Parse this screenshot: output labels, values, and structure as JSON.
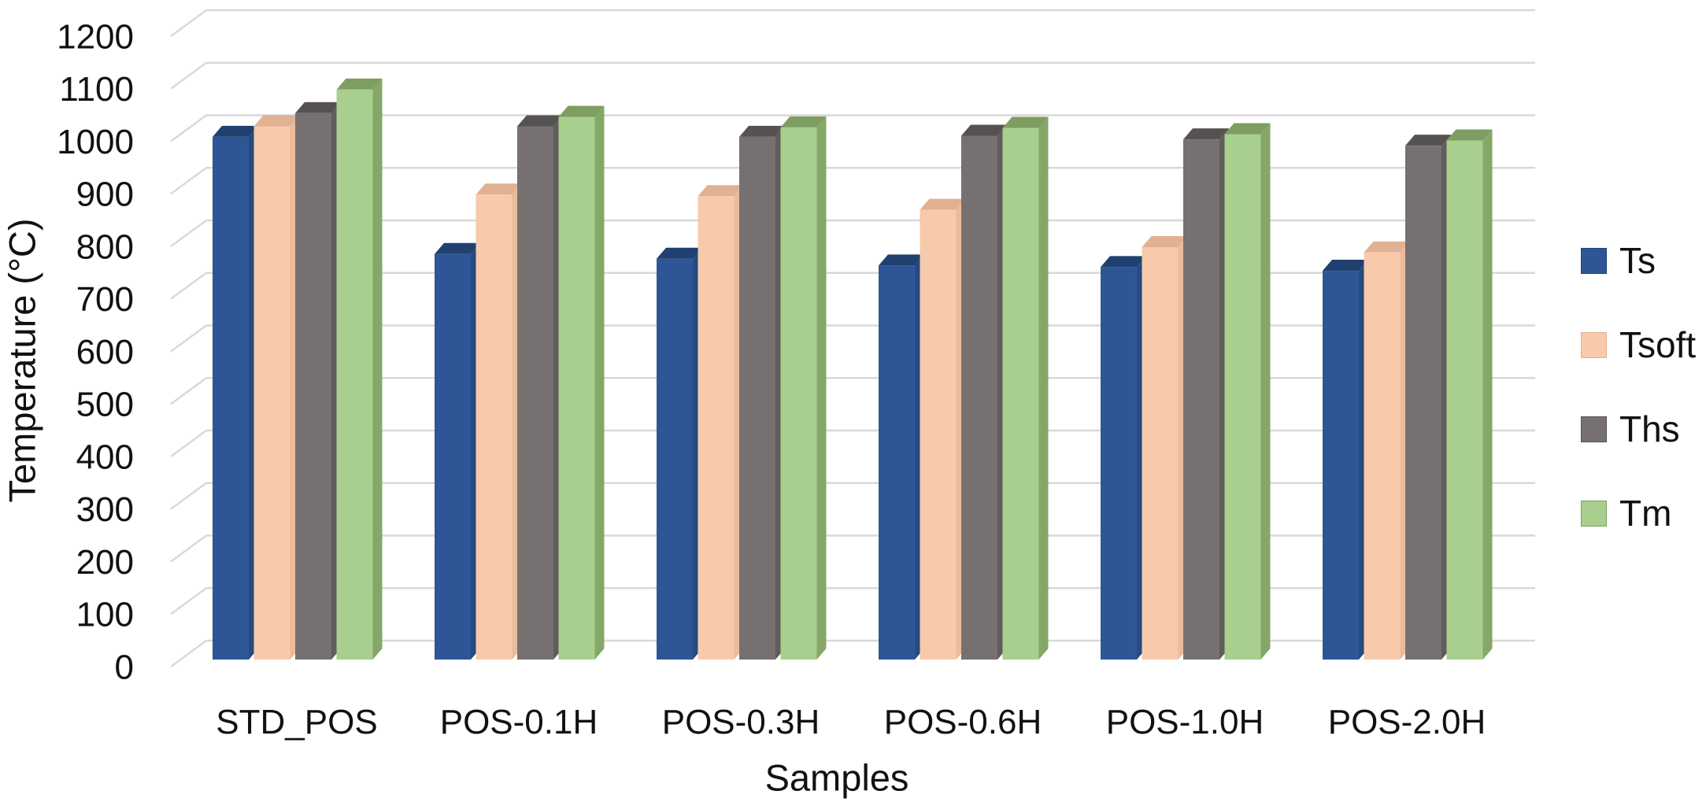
{
  "chart_data": {
    "type": "bar",
    "projection": "3d-clustered-column",
    "title": "",
    "xlabel": "Samples",
    "ylabel": "Temperature (°C)",
    "ylim": [
      0,
      1200
    ],
    "ytick_step": 100,
    "grid": true,
    "legend_position": "right",
    "background_color": "#FFFFFF",
    "gridline_color": "#D8D8D8",
    "text_color": "#111111",
    "categories": [
      "STD_POS",
      "POS-0.1H",
      "POS-0.3H",
      "POS-0.6H",
      "POS-1.0H",
      "POS-2.0H"
    ],
    "series": [
      {
        "name": "Ts",
        "values": [
          995,
          772,
          763,
          750,
          747,
          740
        ],
        "color": "#2E5697",
        "color_top": "#20406F",
        "color_side": "#274A80"
      },
      {
        "name": "Tsoft",
        "values": [
          1015,
          885,
          882,
          856,
          785,
          775
        ],
        "color": "#F7CAAB",
        "color_top": "#E0B192",
        "color_side": "#EBBC9B"
      },
      {
        "name": "Ths",
        "values": [
          1040,
          1015,
          995,
          997,
          990,
          978
        ],
        "color": "#767070",
        "color_top": "#575252",
        "color_side": "#615C5C"
      },
      {
        "name": "Tm",
        "values": [
          1085,
          1033,
          1013,
          1012,
          1000,
          988
        ],
        "color": "#A8CF8D",
        "color_top": "#7E9D60",
        "color_side": "#85A768"
      }
    ]
  }
}
